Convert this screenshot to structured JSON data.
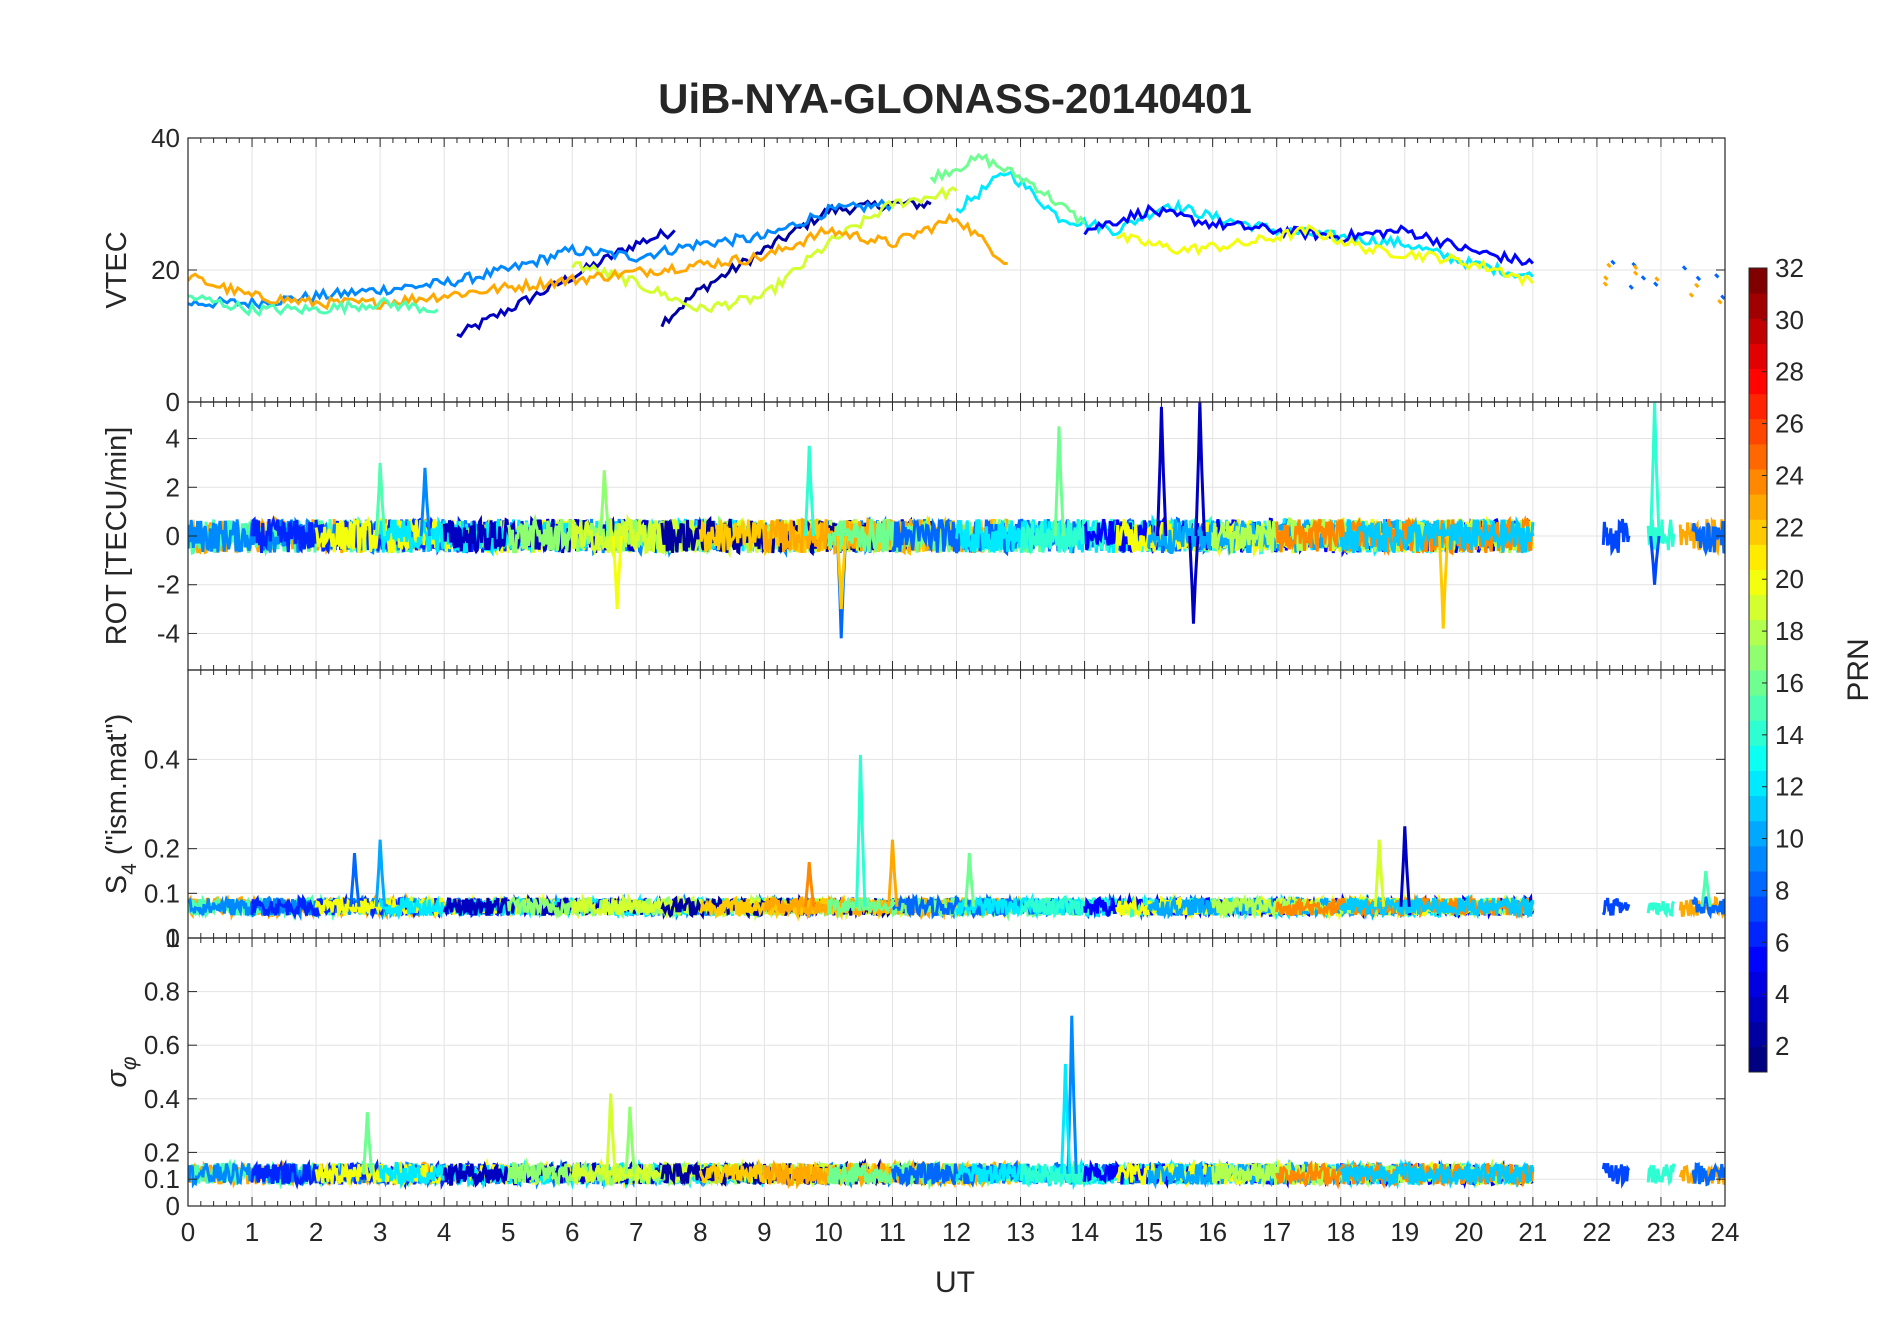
{
  "chart_data": {
    "type": "line",
    "title": "UiB-NYA-GLONASS-20140401",
    "xlabel": "UT",
    "xlim": [
      0,
      24
    ],
    "xticks": [
      0,
      1,
      2,
      3,
      4,
      5,
      6,
      7,
      8,
      9,
      10,
      11,
      12,
      13,
      14,
      15,
      16,
      17,
      18,
      19,
      20,
      21,
      22,
      23,
      24
    ],
    "grid": true,
    "panels": [
      {
        "id": "vtec",
        "ylabel": "VTEC",
        "ylim": [
          0,
          40
        ],
        "yticks": [
          20,
          40
        ],
        "yticklabels": [
          "20",
          "40"
        ],
        "notes": "VTEC per satellite pass; dense multi-colored arcs from ~0 to 21 UT, sparse fragments 22-24 UT",
        "series": [
          {
            "prn": 3,
            "x": [
              4.2,
              5,
              6,
              7,
              7.6
            ],
            "y": [
              10,
              14,
              19,
              24,
              26
            ]
          },
          {
            "prn": 2,
            "x": [
              7.4,
              8,
              9,
              10,
              11,
              11.6
            ],
            "y": [
              12,
              17,
              23,
              29,
              30,
              30
            ]
          },
          {
            "prn": 9,
            "x": [
              0,
              1,
              2,
              3,
              4,
              5,
              6,
              7,
              8,
              9,
              10,
              11
            ],
            "y": [
              15,
              15,
              16,
              17,
              18,
              20,
              23,
              22,
              24,
              25,
              29,
              30
            ]
          },
          {
            "prn": 12,
            "x": [
              12,
              12.8,
              13.6,
              14.5,
              15.3,
              16,
              17,
              18,
              19,
              20,
              21
            ],
            "y": [
              29,
              35,
              28,
              26,
              30,
              28,
              26,
              25,
              24,
              21,
              19
            ]
          },
          {
            "prn": 16,
            "x": [
              11.6,
              12.4,
              13.2,
              14
            ],
            "y": [
              34,
              37,
              33,
              27
            ]
          },
          {
            "prn": 19,
            "x": [
              6,
              7,
              8,
              9,
              10,
              11,
              12
            ],
            "y": [
              21,
              18,
              14,
              16,
              24,
              30,
              32
            ]
          },
          {
            "prn": 23,
            "x": [
              0,
              1,
              2,
              3,
              9,
              10,
              11,
              12,
              12.8
            ],
            "y": [
              19,
              16,
              15,
              15,
              22,
              26,
              24,
              28,
              21
            ]
          },
          {
            "prn": 5,
            "x": [
              14,
              15,
              16,
              17,
              18,
              19,
              20,
              21
            ],
            "y": [
              26,
              29,
              27,
              26,
              25,
              26,
              23,
              21
            ]
          },
          {
            "prn": 15,
            "x": [
              0,
              1,
              2,
              3,
              3.9
            ],
            "y": [
              16,
              14,
              14,
              15,
              14
            ]
          },
          {
            "prn": 20,
            "x": [
              14.5,
              15.5,
              16.5,
              17.5,
              18.5,
              19.5,
              20.5,
              21
            ],
            "y": [
              25,
              23,
              24,
              26,
              23,
              22,
              20,
              18
            ]
          }
        ]
      },
      {
        "id": "rot",
        "ylabel": "ROT [TECU/min]",
        "ylim": [
          -5.5,
          5.5
        ],
        "yticks": [
          -4,
          -2,
          0,
          2,
          4
        ],
        "yticklabels": [
          "-4",
          "-2",
          "0",
          "2",
          "4"
        ],
        "top_tick_label": "0",
        "notes": "Rate of TEC noise band ~±1 TECU/min with spikes up to ~5",
        "spikes": [
          {
            "x": 3.0,
            "y": 3.0,
            "prn": 15
          },
          {
            "x": 3.7,
            "y": 2.8,
            "prn": 9
          },
          {
            "x": 6.5,
            "y": 2.7,
            "prn": 17
          },
          {
            "x": 6.7,
            "y": -3.0,
            "prn": 20
          },
          {
            "x": 9.7,
            "y": 3.7,
            "prn": 14
          },
          {
            "x": 10.2,
            "y": -4.2,
            "prn": 8
          },
          {
            "x": 10.2,
            "y": -3.0,
            "prn": 22
          },
          {
            "x": 13.6,
            "y": 4.5,
            "prn": 16
          },
          {
            "x": 15.2,
            "y": 5.3,
            "prn": 3
          },
          {
            "x": 15.7,
            "y": -3.6,
            "prn": 3
          },
          {
            "x": 15.8,
            "y": 5.5,
            "prn": 3
          },
          {
            "x": 19.6,
            "y": -3.8,
            "prn": 22
          },
          {
            "x": 22.9,
            "y": 5.5,
            "prn": 14
          },
          {
            "x": 22.9,
            "y": -2.0,
            "prn": 7
          }
        ]
      },
      {
        "id": "s4",
        "ylabel": "S4 (\"ism.mat\")",
        "ylabel_main": "S",
        "ylabel_sub": "4",
        "ylabel_rest": " (\"ism.mat\")",
        "ylim": [
          0,
          0.6
        ],
        "yticks": [
          0.1,
          0.2,
          0.4
        ],
        "yticklabels": [
          "0.1",
          "0.2",
          "0.4"
        ],
        "bottom_tick_label": "0",
        "notes": "Amplitude scintillation index, baseline ~0.05-0.1 with peaks",
        "spikes": [
          {
            "x": 2.6,
            "y": 0.19,
            "prn": 8
          },
          {
            "x": 3.0,
            "y": 0.22,
            "prn": 10
          },
          {
            "x": 10.5,
            "y": 0.41,
            "prn": 14
          },
          {
            "x": 11.0,
            "y": 0.22,
            "prn": 23
          },
          {
            "x": 9.7,
            "y": 0.17,
            "prn": 24
          },
          {
            "x": 12.2,
            "y": 0.19,
            "prn": 16
          },
          {
            "x": 18.6,
            "y": 0.22,
            "prn": 19
          },
          {
            "x": 19.0,
            "y": 0.25,
            "prn": 3
          },
          {
            "x": 23.7,
            "y": 0.15,
            "prn": 15
          }
        ]
      },
      {
        "id": "sigma_phi",
        "ylabel": "σφ",
        "ylabel_main": "σ",
        "ylabel_sub": "φ",
        "ylim": [
          0,
          1
        ],
        "yticks": [
          0,
          0.1,
          0.2,
          0.4,
          0.6,
          0.8
        ],
        "yticklabels": [
          "0",
          "0.1",
          "0.2",
          "0.4",
          "0.6",
          "0.8"
        ],
        "top_tick_label": "1",
        "notes": "Phase scintillation index, baseline ~0.1-0.2 with peaks",
        "spikes": [
          {
            "x": 2.8,
            "y": 0.35,
            "prn": 16
          },
          {
            "x": 6.6,
            "y": 0.42,
            "prn": 19
          },
          {
            "x": 6.9,
            "y": 0.37,
            "prn": 17
          },
          {
            "x": 13.8,
            "y": 0.71,
            "prn": 9
          },
          {
            "x": 13.7,
            "y": 0.53,
            "prn": 12
          }
        ]
      }
    ],
    "colorbar": {
      "label": "PRN",
      "colormap": "jet",
      "range": [
        1,
        32
      ],
      "ticks": [
        2,
        4,
        6,
        8,
        10,
        12,
        14,
        16,
        18,
        20,
        22,
        24,
        26,
        28,
        30,
        32
      ],
      "ticklabels": [
        "2",
        "4",
        "6",
        "8",
        "10",
        "12",
        "14",
        "16",
        "18",
        "20",
        "22",
        "24",
        "26",
        "28",
        "30",
        "32"
      ]
    }
  }
}
